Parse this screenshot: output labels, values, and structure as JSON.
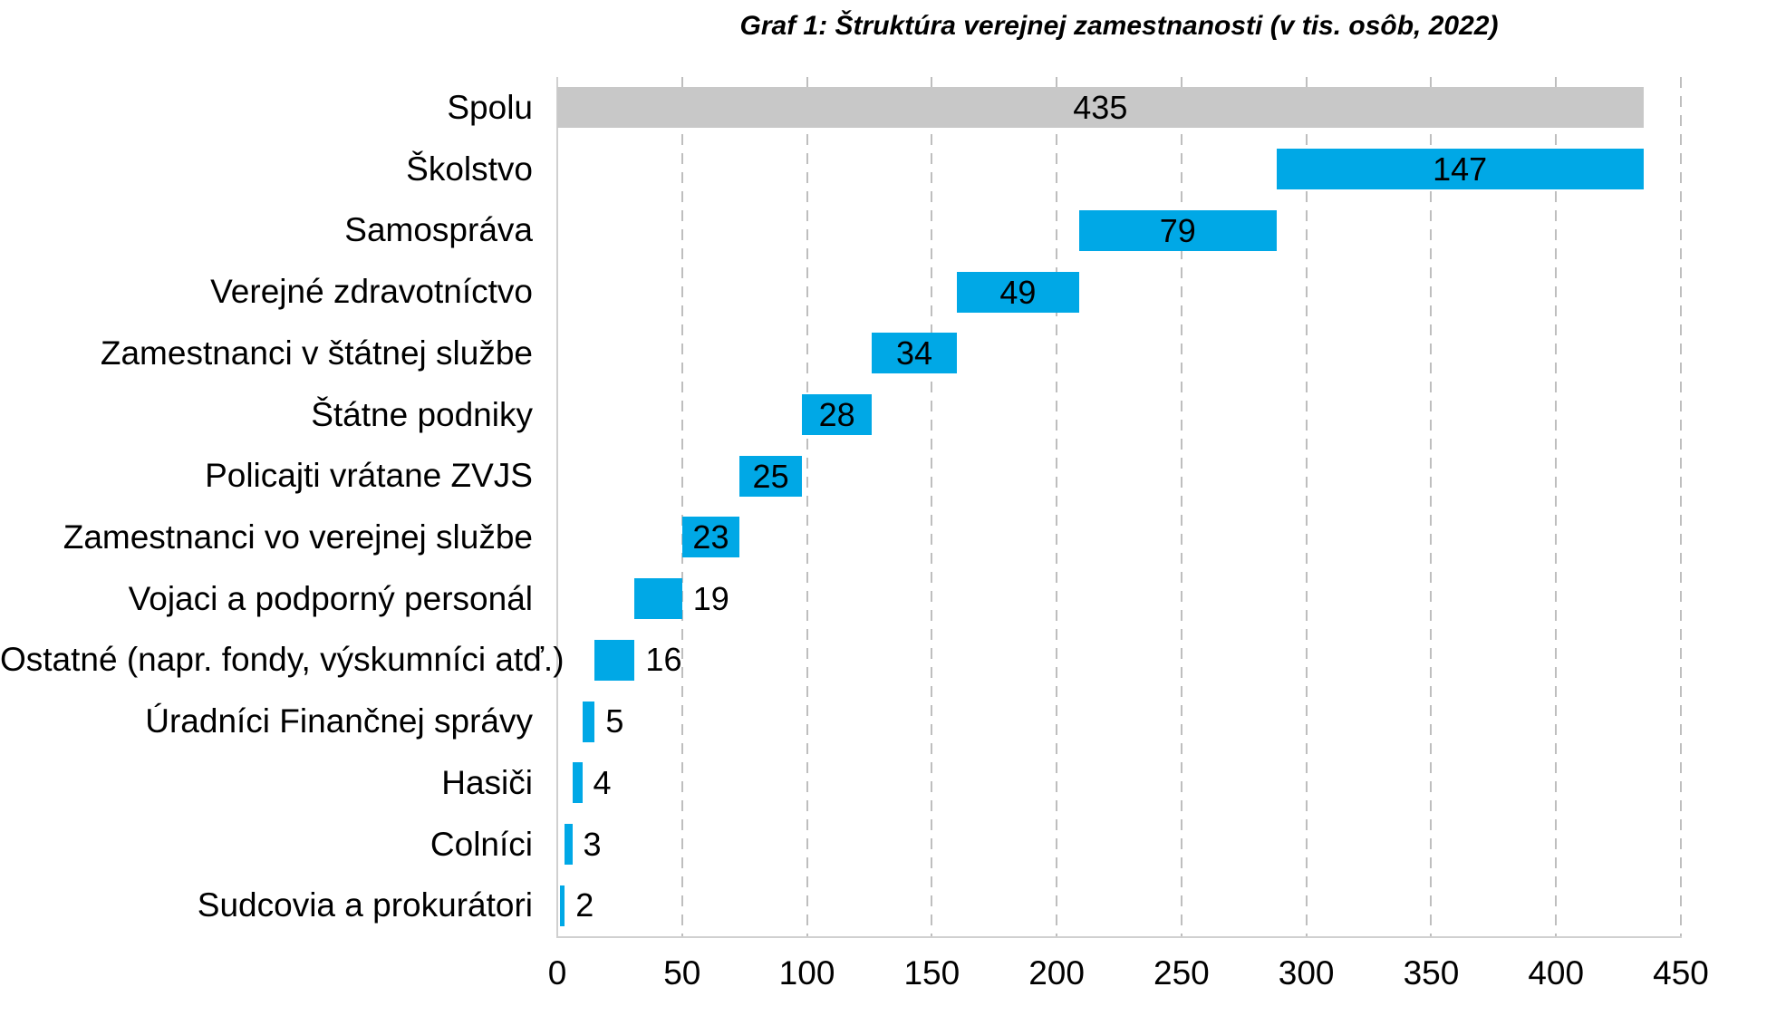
{
  "title": "Graf 1: Štruktúra verejnej zamestnanosti (v tis. osôb, 2022)",
  "colors": {
    "component_bar": "#00A8E6",
    "total_bar": "#C8C8C8",
    "value_text": "#000000",
    "gridline": "#BEBEBE",
    "axis_line": "#D0D0D0"
  },
  "chart_data": {
    "type": "bar",
    "subtype": "horizontal-waterfall",
    "title": "Graf 1: Štruktúra verejnej zamestnanosti (v tis. osôb, 2022)",
    "categories": [
      "Spolu",
      "Školstvo",
      "Samospráva",
      "Verejné zdravotníctvo",
      "Zamestnanci v štátnej službe",
      "Štátne podniky",
      "Policajti vrátane ZVJS",
      "Zamestnanci vo verejnej službe",
      "Vojaci a podporný personál",
      "Ostatné (napr. fondy, výskumníci atď.)",
      "Úradníci Finančnej správy",
      "Hasiči",
      "Colníci",
      "Sudcovia a prokurátori"
    ],
    "values": [
      435,
      147,
      79,
      49,
      34,
      28,
      25,
      23,
      19,
      16,
      5,
      4,
      3,
      2
    ],
    "bar_starts": [
      0,
      288,
      209,
      160,
      126,
      98,
      73,
      50,
      31,
      15,
      10,
      6,
      3,
      1
    ],
    "is_total": [
      true,
      false,
      false,
      false,
      false,
      false,
      false,
      false,
      false,
      false,
      false,
      false,
      false,
      false
    ],
    "label_inside": [
      true,
      true,
      true,
      true,
      true,
      true,
      true,
      true,
      false,
      false,
      false,
      false,
      false,
      false
    ],
    "xlabel": "",
    "ylabel": "",
    "xlim": [
      0,
      450
    ],
    "xticks": [
      0,
      50,
      100,
      150,
      200,
      250,
      300,
      350,
      400,
      450
    ],
    "grid": "vertical-dashed",
    "legend": "none"
  }
}
